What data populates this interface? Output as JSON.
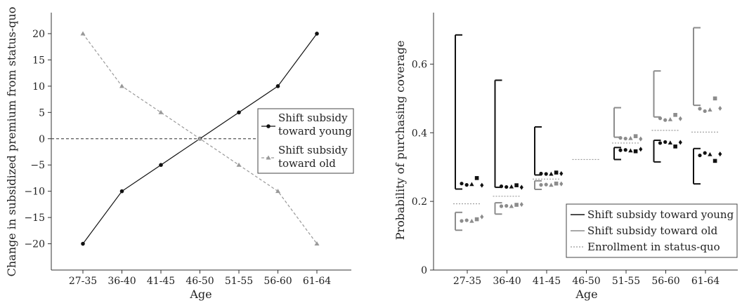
{
  "chart_data": [
    {
      "type": "line",
      "xlabel": "Age",
      "ylabel": "Change in subsidized premium from status-quo",
      "categories": [
        "27-35",
        "36-40",
        "41-45",
        "46-50",
        "51-55",
        "56-60",
        "61-64"
      ],
      "ylim": [
        -25,
        24
      ],
      "yticks": [
        -20,
        -15,
        -10,
        -5,
        0,
        5,
        10,
        15,
        20
      ],
      "reference_line": 0,
      "legend_position": "right",
      "series": [
        {
          "name": "Shift subsidy toward young",
          "values": [
            -20,
            -10,
            -5,
            0,
            5,
            10,
            20
          ],
          "color": "#111111",
          "marker": "circle",
          "dash": "solid"
        },
        {
          "name": "Shift subsidy toward old",
          "values": [
            20,
            10,
            5,
            0,
            -5,
            -10,
            -20
          ],
          "color": "#999999",
          "marker": "triangle",
          "dash": "dashed"
        }
      ]
    },
    {
      "type": "scatter",
      "xlabel": "Age",
      "ylabel": "Probability of purchasing coverage",
      "categories": [
        "27-35",
        "36-40",
        "41-45",
        "46-50",
        "51-55",
        "56-60",
        "61-64"
      ],
      "ylim": [
        0,
        0.75
      ],
      "yticks": [
        0,
        0.2,
        0.4,
        0.6
      ],
      "legend_position": "bottom-right",
      "status_quo": [
        0.193,
        0.215,
        0.265,
        0.322,
        0.37,
        0.407,
        0.402
      ],
      "young": {
        "name": "Shift subsidy toward young",
        "color": "#111111",
        "bars": [
          [
            0.236,
            0.685
          ],
          [
            0.241,
            0.553
          ],
          [
            0.277,
            0.417
          ],
          null,
          [
            0.322,
            0.357
          ],
          [
            0.315,
            0.378
          ],
          [
            0.251,
            0.354
          ]
        ],
        "points": [
          [
            0.252,
            0.248,
            0.25,
            0.268,
            0.247
          ],
          [
            0.244,
            0.242,
            0.243,
            0.247,
            0.241
          ],
          [
            0.281,
            0.28,
            0.28,
            0.284,
            0.281
          ],
          null,
          [
            0.349,
            0.35,
            0.348,
            0.346,
            0.352
          ],
          [
            0.37,
            0.373,
            0.371,
            0.36,
            0.372
          ],
          [
            0.334,
            0.341,
            0.337,
            0.318,
            0.338
          ]
        ]
      },
      "old": {
        "name": "Shift subsidy toward old",
        "color": "#8c8c8c",
        "bars": [
          [
            0.116,
            0.168
          ],
          [
            0.163,
            0.196
          ],
          [
            0.235,
            0.26
          ],
          null,
          [
            0.387,
            0.473
          ],
          [
            0.446,
            0.58
          ],
          [
            0.48,
            0.706
          ]
        ],
        "points": [
          [
            0.143,
            0.145,
            0.143,
            0.148,
            0.155
          ],
          [
            0.186,
            0.187,
            0.186,
            0.19,
            0.191
          ],
          [
            0.248,
            0.249,
            0.248,
            0.252,
            0.251
          ],
          null,
          [
            0.385,
            0.383,
            0.384,
            0.39,
            0.382
          ],
          [
            0.442,
            0.437,
            0.439,
            0.452,
            0.441
          ],
          [
            0.47,
            0.463,
            0.467,
            0.5,
            0.471
          ]
        ]
      },
      "legend": [
        "Shift subsidy toward young",
        "Shift subsidy toward old",
        "Enrollment in status-quo"
      ]
    }
  ]
}
